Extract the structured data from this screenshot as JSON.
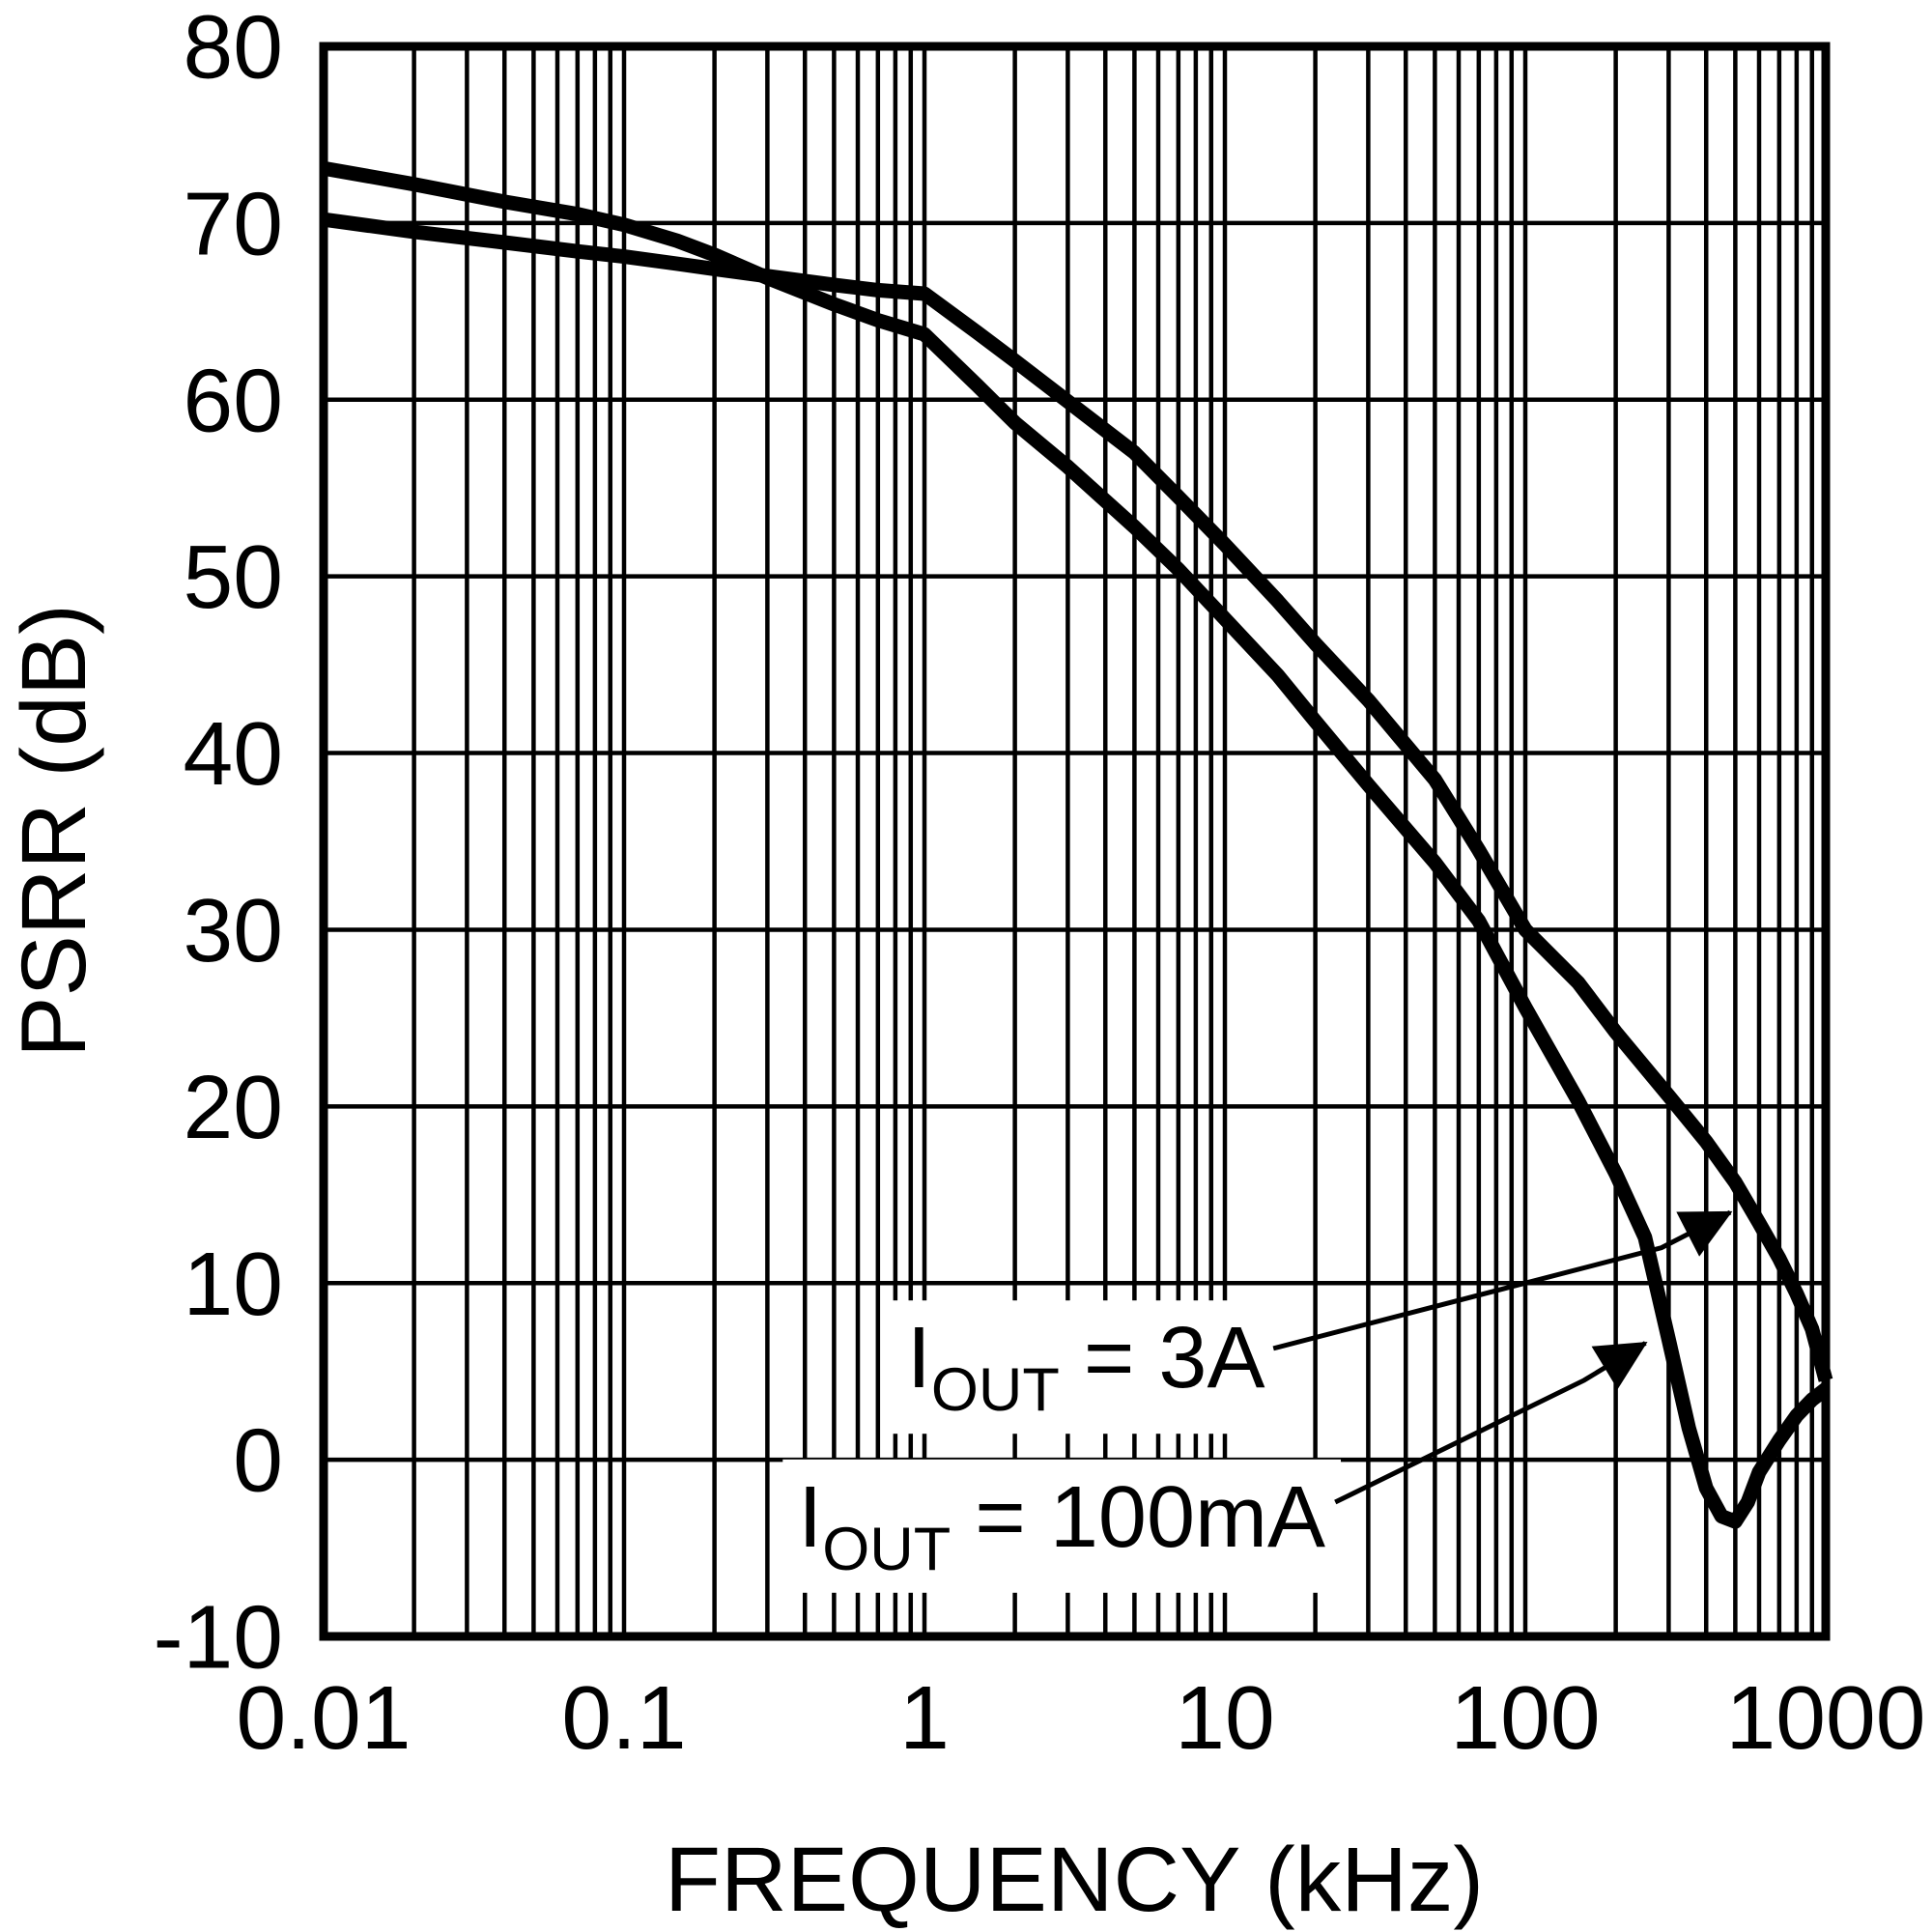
{
  "page": {
    "background": "#ffffff",
    "ink": "#000000"
  },
  "chart_data": {
    "type": "line",
    "title": "",
    "xlabel": "FREQUENCY (kHz)",
    "ylabel": "PSRR (dB)",
    "x_scale": "log",
    "y_scale": "linear",
    "xlim": [
      0.01,
      1000
    ],
    "ylim": [
      -10,
      80
    ],
    "grid": {
      "major": true,
      "minor_x": true,
      "legend_position": "none"
    },
    "x_ticks": {
      "values": [
        0.01,
        0.1,
        1,
        10,
        100,
        1000
      ],
      "labels": [
        "0.01",
        "0.1",
        "1",
        "10",
        "100",
        "1000"
      ]
    },
    "y_ticks": {
      "values": [
        80,
        70,
        60,
        50,
        40,
        30,
        20,
        10,
        0,
        -10
      ],
      "labels": [
        "80",
        "70",
        "60",
        "50",
        "40",
        "30",
        "20",
        "10",
        "0",
        "-10"
      ]
    },
    "series": [
      {
        "name": "IOUT = 3A",
        "points": [
          [
            0.01,
            70.2
          ],
          [
            0.02,
            69.5
          ],
          [
            0.04,
            68.9
          ],
          [
            0.07,
            68.4
          ],
          [
            0.1,
            68.1
          ],
          [
            0.15,
            67.7
          ],
          [
            0.2,
            67.4
          ],
          [
            0.3,
            67.0
          ],
          [
            0.5,
            66.5
          ],
          [
            0.7,
            66.2
          ],
          [
            1,
            66.0
          ],
          [
            1.5,
            63.8
          ],
          [
            2,
            62.2
          ],
          [
            3,
            59.9
          ],
          [
            5,
            57.0
          ],
          [
            7,
            54.5
          ],
          [
            10,
            51.8
          ],
          [
            15,
            48.6
          ],
          [
            20,
            46.2
          ],
          [
            30,
            43.0
          ],
          [
            50,
            38.5
          ],
          [
            70,
            34.5
          ],
          [
            100,
            30.0
          ],
          [
            150,
            27.0
          ],
          [
            200,
            24.2
          ],
          [
            300,
            20.6
          ],
          [
            400,
            18.0
          ],
          [
            500,
            15.7
          ],
          [
            600,
            13.4
          ],
          [
            700,
            11.4
          ],
          [
            800,
            9.4
          ],
          [
            900,
            7.4
          ],
          [
            1000,
            4.5
          ]
        ]
      },
      {
        "name": "IOUT = 100mA",
        "points": [
          [
            0.01,
            73.1
          ],
          [
            0.02,
            72.2
          ],
          [
            0.04,
            71.2
          ],
          [
            0.07,
            70.5
          ],
          [
            0.1,
            69.9
          ],
          [
            0.15,
            69.0
          ],
          [
            0.2,
            68.2
          ],
          [
            0.3,
            66.9
          ],
          [
            0.5,
            65.4
          ],
          [
            0.7,
            64.5
          ],
          [
            1,
            63.7
          ],
          [
            1.5,
            60.8
          ],
          [
            2,
            58.7
          ],
          [
            3,
            56.2
          ],
          [
            5,
            52.8
          ],
          [
            7,
            50.4
          ],
          [
            10,
            47.6
          ],
          [
            15,
            44.4
          ],
          [
            20,
            41.8
          ],
          [
            30,
            38.2
          ],
          [
            50,
            33.8
          ],
          [
            70,
            30.5
          ],
          [
            100,
            25.6
          ],
          [
            150,
            20.3
          ],
          [
            200,
            16.2
          ],
          [
            250,
            12.6
          ],
          [
            300,
            6.8
          ],
          [
            350,
            1.8
          ],
          [
            400,
            -1.6
          ],
          [
            450,
            -3.2
          ],
          [
            500,
            -3.5
          ],
          [
            550,
            -2.4
          ],
          [
            600,
            -0.7
          ],
          [
            700,
            1.1
          ],
          [
            800,
            2.5
          ],
          [
            900,
            3.4
          ],
          [
            1000,
            4.0
          ]
        ]
      }
    ],
    "annotations": [
      {
        "full_text": "IOUT = 3A",
        "label_main": "I",
        "label_sub": "OUT",
        "label_rest": " = 3A",
        "anchor": [
          13.6,
          5.9
        ],
        "arrow": [
          [
            14.5,
            6.3
          ],
          [
            284,
            12.0
          ],
          [
            481,
            14.0
          ]
        ]
      },
      {
        "full_text": "IOUT = 100mA",
        "label_main": "I",
        "label_sub": "OUT",
        "label_rest": " = 100mA",
        "anchor": [
          21.6,
          -3.1
        ],
        "arrow": [
          [
            23.3,
            -2.4
          ],
          [
            157,
            4.5
          ],
          [
            251,
            6.6
          ]
        ]
      }
    ]
  }
}
